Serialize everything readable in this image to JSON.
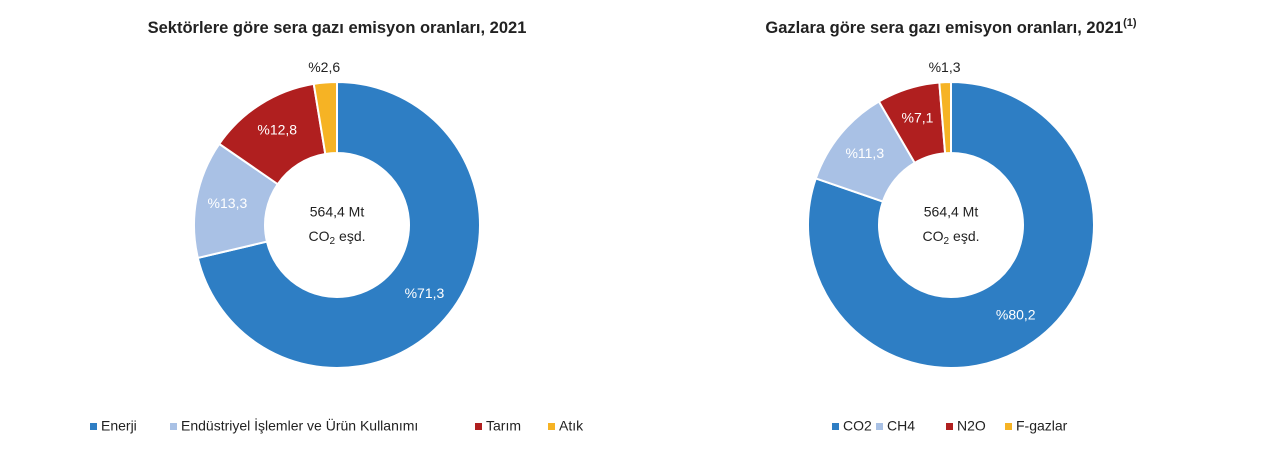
{
  "chart_data": [
    {
      "type": "donut",
      "title": "Sektörlere göre sera gazı emisyon oranları, 2021",
      "center_label": [
        "564,4 Mt",
        "CO",
        "2",
        "eşd."
      ],
      "categories": [
        "Enerji",
        "Endüstriyel İşlemler ve Ürün Kullanımı",
        "Tarım",
        "Atık"
      ],
      "values": [
        71.3,
        13.3,
        12.8,
        2.6
      ],
      "value_labels": [
        "%71,3",
        "%13,3",
        "%12,8",
        "%2,6"
      ],
      "colors": [
        "#2e7ec4",
        "#a9c1e5",
        "#b01f1f",
        "#f6b324"
      ]
    },
    {
      "type": "donut",
      "title": "Gazlara göre sera gazı emisyon oranları, 2021",
      "title_note": "(1)",
      "center_label": [
        "564,4 Mt",
        "CO",
        "2",
        "eşd."
      ],
      "categories": [
        "CO2",
        "CH4",
        "N2O",
        "F-gazlar"
      ],
      "values": [
        80.2,
        11.3,
        7.1,
        1.3
      ],
      "value_labels": [
        "%80,2",
        "%11,3",
        "%7,1",
        "%1,3"
      ],
      "colors": [
        "#2e7ec4",
        "#a9c1e5",
        "#b01f1f",
        "#f6b324"
      ]
    }
  ]
}
